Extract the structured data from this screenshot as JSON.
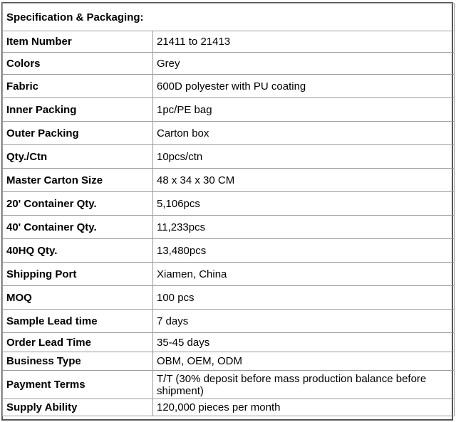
{
  "title": "Specification & Packaging:",
  "rows": [
    {
      "label": "Item Number",
      "value": "21411 to 21413"
    },
    {
      "label": "Colors",
      "value": "Grey"
    },
    {
      "label": "Fabric",
      "value": "600D polyester with PU coating"
    },
    {
      "label": "Inner Packing",
      "value": "1pc/PE bag"
    },
    {
      "label": "Outer Packing",
      "value": "Carton box"
    },
    {
      "label": "Qty./Ctn",
      "value": "10pcs/ctn"
    },
    {
      "label": "Master Carton Size",
      "value": "48 x 34 x 30 CM"
    },
    {
      "label": "20' Container Qty.",
      "value": "5,106pcs"
    },
    {
      "label": "40' Container Qty.",
      "value": "11,233pcs"
    },
    {
      "label": "40HQ Qty.",
      "value": "13,480pcs"
    },
    {
      "label": "Shipping Port",
      "value": "Xiamen, China"
    },
    {
      "label": "MOQ",
      "value": "100 pcs"
    },
    {
      "label": "Sample Lead time",
      "value": "7 days"
    },
    {
      "label": "Order Lead Time",
      "value": "35-45 days"
    },
    {
      "label": "Business Type",
      "value": "OBM, OEM, ODM"
    },
    {
      "label": "Payment Terms",
      "value": "T/T (30% deposit before mass production balance before shipment)"
    },
    {
      "label": "Supply Ability",
      "value": "120,000 pieces per month"
    }
  ]
}
